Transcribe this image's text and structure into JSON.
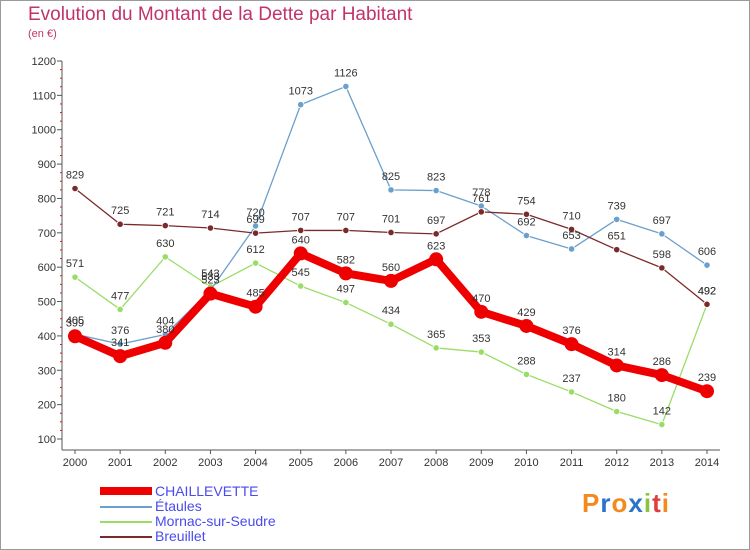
{
  "title": "Evolution du Montant de la Dette par Habitant",
  "subtitle": "(en €)",
  "logo": {
    "letters": [
      "P",
      "r",
      "o",
      "x",
      "i",
      "t",
      "i"
    ],
    "colors": [
      "#f28a1e",
      "#2a74c7",
      "#f28a1e",
      "#2a74c7",
      "#8ac43f",
      "#e23d3d",
      "#f28a1e"
    ]
  },
  "chart_data": {
    "type": "line",
    "title": "Evolution du Montant de la Dette par Habitant",
    "subtitle": "(en €)",
    "x": [
      "2000",
      "2001",
      "2002",
      "2003",
      "2004",
      "2005",
      "2006",
      "2007",
      "2008",
      "2009",
      "2010",
      "2011",
      "2012",
      "2013",
      "2014"
    ],
    "ylim": [
      100,
      1200
    ],
    "yticks": [
      "100",
      "200",
      "300",
      "400",
      "500",
      "600",
      "700",
      "800",
      "900",
      "1000",
      "1100",
      "1200"
    ],
    "grid": false,
    "legend_position": "bottom-left",
    "series": [
      {
        "name": "Mornac-sur-Seudre",
        "color": "#99dd66",
        "width": 1.3,
        "marker": 3.2,
        "values": [
          571,
          477,
          630,
          543,
          612,
          545,
          497,
          434,
          365,
          353,
          288,
          237,
          180,
          142,
          492
        ],
        "labels": [
          "571",
          "477",
          "630",
          "543",
          "612",
          "545",
          "497",
          "434",
          "365",
          "353",
          "288",
          "237",
          "180",
          "142",
          "492"
        ]
      },
      {
        "name": "Étaules",
        "color": "#6a9fce",
        "width": 1.3,
        "marker": 3.2,
        "values": [
          405,
          376,
          404,
          533,
          720,
          1073,
          1126,
          825,
          823,
          778,
          692,
          653,
          739,
          697,
          606
        ],
        "labels": [
          "405",
          "376",
          "404",
          "533",
          "720",
          "1073",
          "1126",
          "825",
          "823",
          "778",
          "692",
          "653",
          "739",
          "697",
          "606"
        ]
      },
      {
        "name": "Breuillet",
        "color": "#7a2a2a",
        "width": 1.3,
        "marker": 3.2,
        "values": [
          829,
          725,
          721,
          714,
          699,
          707,
          707,
          701,
          697,
          761,
          754,
          710,
          651,
          598,
          492
        ],
        "labels": [
          "829",
          "725",
          "721",
          "714",
          "699",
          "707",
          "707",
          "701",
          "697",
          "761",
          "754",
          "710",
          "651",
          "598",
          "492"
        ]
      },
      {
        "name": "CHAILLEVETTE",
        "color": "#ee0000",
        "width": 8,
        "marker": 7,
        "values": [
          399,
          341,
          380,
          523,
          485,
          640,
          582,
          560,
          623,
          470,
          429,
          376,
          314,
          286,
          239
        ],
        "labels": [
          "399",
          "341",
          "380",
          "523",
          "485",
          "640",
          "582",
          "560",
          "623",
          "470",
          "429",
          "376",
          "314",
          "286",
          "239"
        ]
      }
    ]
  },
  "legend": [
    {
      "name": "CHAILLEVETTE",
      "color": "#ee0000",
      "text_color": "#4a4aee"
    },
    {
      "name": "Étaules",
      "color": "#6a9fce",
      "text_color": "#4a4aee"
    },
    {
      "name": "Mornac-sur-Seudre",
      "color": "#99dd66",
      "text_color": "#4a4aee"
    },
    {
      "name": "Breuillet",
      "color": "#7a2a2a",
      "text_color": "#4a4aee"
    }
  ]
}
